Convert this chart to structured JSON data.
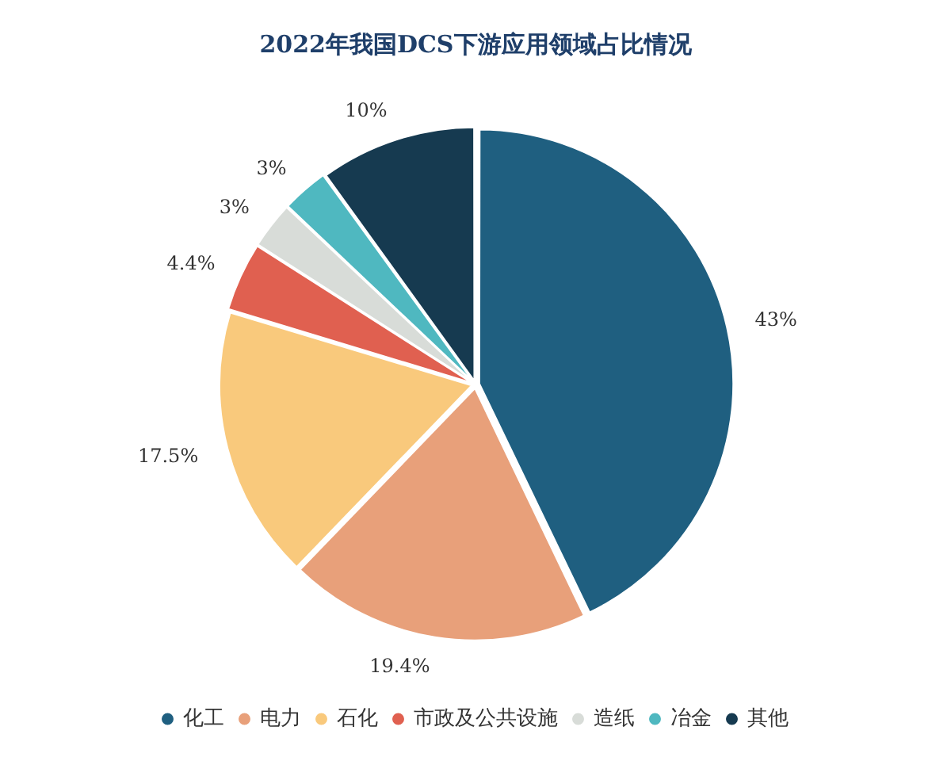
{
  "chart_data": {
    "type": "pie",
    "title": "2022年我国DCS下游应用领域占比情况",
    "categories": [
      "化工",
      "电力",
      "石化",
      "市政及公共设施",
      "造纸",
      "冶金",
      "其他"
    ],
    "values": [
      43,
      19.4,
      17.5,
      4.4,
      3,
      3,
      10
    ],
    "colors": [
      "#1f5f80",
      "#e8a07a",
      "#f9c97c",
      "#e06050",
      "#d8dcd8",
      "#4fb8c0",
      "#163a50"
    ],
    "value_labels": [
      "43%",
      "19.4%",
      "17.5%",
      "4.4%",
      "3%",
      "3%",
      "10%"
    ],
    "legend": "bottom"
  }
}
